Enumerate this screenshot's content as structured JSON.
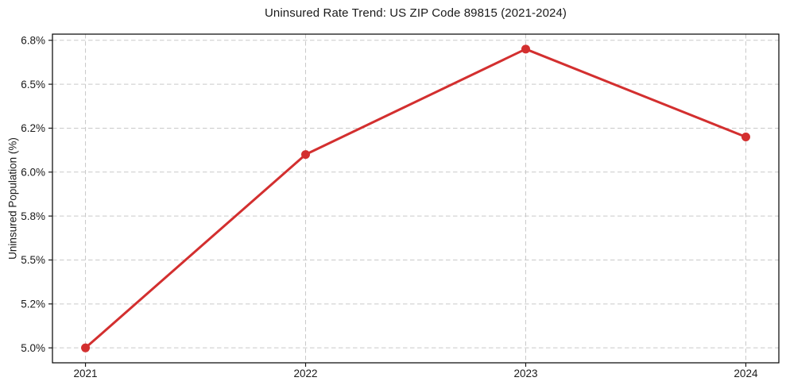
{
  "chart_data": {
    "type": "line",
    "title": "Uninsured Rate Trend: US ZIP Code 89815 (2021-2024)",
    "xlabel": "",
    "ylabel": "Uninsured Population (%)",
    "x": [
      2021,
      2022,
      2023,
      2024
    ],
    "x_tick_labels": [
      "2021",
      "2022",
      "2023",
      "2024"
    ],
    "series": [
      {
        "name": "uninsured-rate",
        "values": [
          5.0,
          6.1,
          6.7,
          6.2
        ],
        "color": "#d32f2f",
        "marker": "circle"
      }
    ],
    "y_ticks": [
      5.0,
      5.25,
      5.5,
      5.75,
      6.0,
      6.25,
      6.5,
      6.75
    ],
    "y_tick_labels": [
      "5.0%",
      "5.2%",
      "5.5%",
      "5.8%",
      "6.0%",
      "6.2%",
      "6.5%",
      "6.8%"
    ],
    "xlim": [
      2020.85,
      2024.15
    ],
    "ylim": [
      4.915,
      6.785
    ],
    "grid": true,
    "grid_style": "dashed",
    "grid_color": "#c9c9c9",
    "spine_color": "#000000",
    "tick_color": "#1a1a1a",
    "text_color": "#1a1a1a",
    "background": "#ffffff",
    "line_width": 3,
    "marker_radius": 5.5,
    "legend_position": "none"
  }
}
